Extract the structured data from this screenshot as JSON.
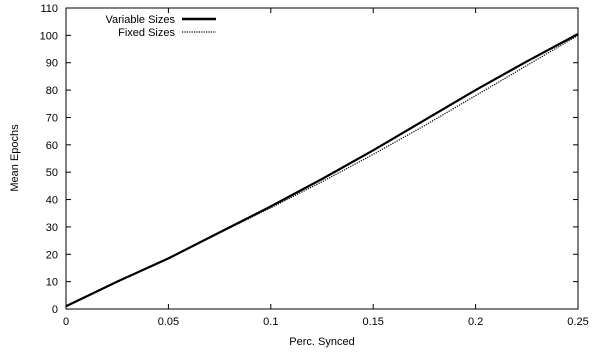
{
  "chart_data": {
    "type": "line",
    "title": "",
    "xlabel": "Perc. Synced",
    "ylabel": "Mean Epochs",
    "xlim": [
      0,
      0.25
    ],
    "ylim": [
      0,
      110
    ],
    "x_ticks": [
      0,
      0.05,
      0.1,
      0.15,
      0.2,
      0.25
    ],
    "x_tick_labels": [
      "0",
      "0.05",
      "0.1",
      "0.15",
      "0.2",
      "0.25"
    ],
    "y_ticks": [
      0,
      10,
      20,
      30,
      40,
      50,
      60,
      70,
      80,
      90,
      100,
      110
    ],
    "y_tick_labels": [
      "0",
      "10",
      "20",
      "30",
      "40",
      "50",
      "60",
      "70",
      "80",
      "90",
      "100",
      "110"
    ],
    "grid": false,
    "legend_position": "top-left",
    "series": [
      {
        "name": "Variable Sizes",
        "style": "solid",
        "color": "#000000",
        "x": [
          0,
          0.025,
          0.05,
          0.075,
          0.1,
          0.125,
          0.15,
          0.175,
          0.2,
          0.225,
          0.25
        ],
        "y": [
          1,
          10,
          18.5,
          28,
          37.5,
          47.5,
          58,
          69,
          80,
          90.5,
          100.5
        ]
      },
      {
        "name": "Fixed Sizes",
        "style": "dotted",
        "color": "#000000",
        "x": [
          0,
          0.025,
          0.05,
          0.075,
          0.1,
          0.125,
          0.15,
          0.175,
          0.2,
          0.225,
          0.25
        ],
        "y": [
          1,
          10,
          18.5,
          27.8,
          37,
          46.5,
          56.5,
          67,
          78,
          89,
          100
        ]
      }
    ]
  }
}
